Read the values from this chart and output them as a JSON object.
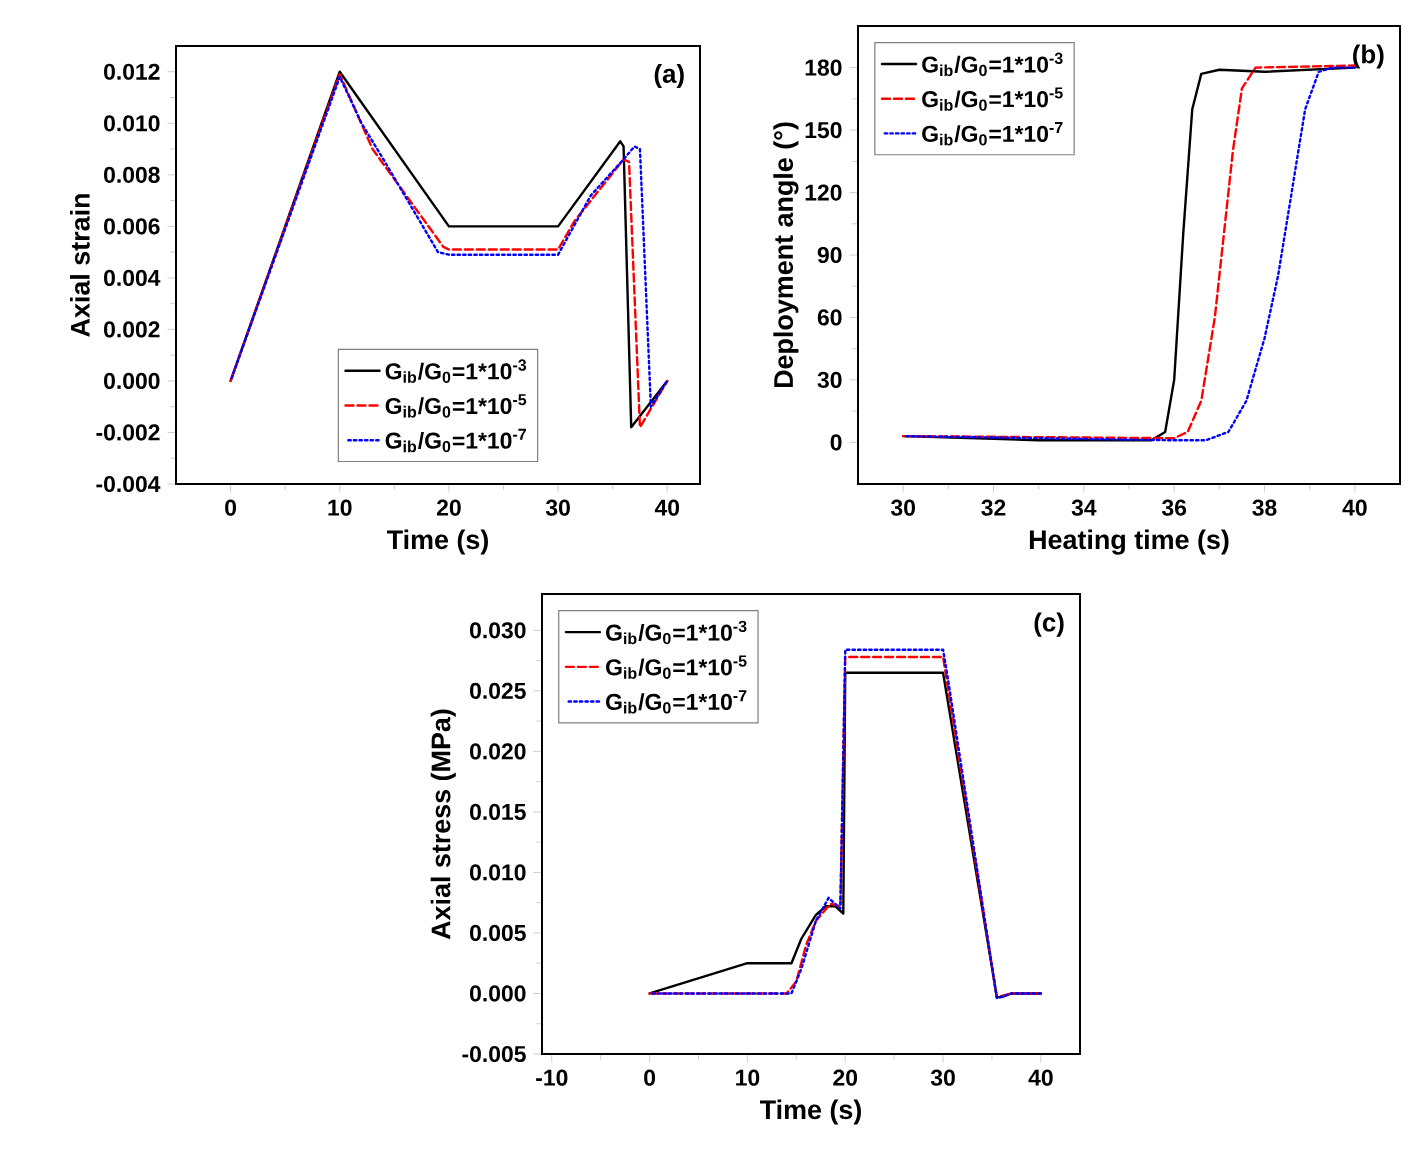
{
  "chart_data": [
    {
      "type": "line",
      "xlabel": "Time (s)",
      "ylabel": "Axial strain",
      "annotations": [
        "(a)"
      ],
      "legend": "bottom",
      "xlim": [
        -5,
        43
      ],
      "ylim": [
        -0.004,
        0.013
      ],
      "xticks": [
        0,
        10,
        20,
        30,
        40
      ],
      "yticks": [
        {
          "value": -0.004,
          "label": "-0.004"
        },
        {
          "value": -0.002,
          "label": "-0.002"
        },
        {
          "value": 0,
          "label": "0.000"
        },
        {
          "value": 0.002,
          "label": "0.002"
        },
        {
          "value": 0.004,
          "label": "0.004"
        },
        {
          "value": 0.006,
          "label": "0.006"
        },
        {
          "value": 0.008,
          "label": "0.008"
        },
        {
          "value": 0.01,
          "label": "0.010"
        },
        {
          "value": 0.012,
          "label": "0.012"
        }
      ],
      "series": [
        {
          "name": "G$_{ib}$/G$_{0}$=1*10$^{-3}$",
          "color": "#000000",
          "line_style": "solid",
          "x": [
            0,
            10,
            20,
            30,
            35.7,
            36,
            36.7,
            40
          ],
          "values": [
            0,
            0.012,
            0.006,
            0.006,
            0.0093,
            0.0091,
            -0.0018,
            0
          ]
        },
        {
          "name": "G$_{ib}$/G$_{0}$=1*10$^{-5}$",
          "color": "#ff0000",
          "line_style": "dashed",
          "x": [
            0,
            10,
            13,
            19.5,
            20,
            30,
            31.5,
            36,
            36.5,
            37.5,
            40
          ],
          "values": [
            0,
            0.0119,
            0.009,
            0.0052,
            0.0051,
            0.0051,
            0.0062,
            0.0086,
            0.0085,
            -0.0018,
            0
          ]
        },
        {
          "name": "G$_{ib}$/G$_{0}$=1*10$^{-7}$",
          "color": "#0000ff",
          "line_style": "dotted",
          "x": [
            0,
            10,
            12,
            14,
            19,
            20,
            30,
            33,
            36,
            37,
            37.5,
            38.5,
            40
          ],
          "values": [
            0,
            0.0118,
            0.01,
            0.0086,
            0.005,
            0.0049,
            0.0049,
            0.0072,
            0.0086,
            0.0091,
            0.009,
            -0.001,
            0
          ]
        }
      ]
    },
    {
      "type": "line",
      "xlabel": "Heating time (s)",
      "ylabel": "Deployment angle (°)",
      "annotations": [
        "(b)"
      ],
      "legend": "top left",
      "xlim": [
        29,
        41
      ],
      "ylim": [
        -20,
        200
      ],
      "xticks": [
        30,
        32,
        34,
        36,
        38,
        40
      ],
      "yticks": [
        0,
        30,
        60,
        90,
        120,
        150,
        180
      ],
      "series": [
        {
          "name": "G$_{ib}$/G$_{0}$=1*10$^{-3}$",
          "color": "#000000",
          "line_style": "solid",
          "x": [
            30,
            33,
            35.5,
            35.8,
            36,
            36.2,
            36.4,
            36.6,
            37,
            38,
            40
          ],
          "values": [
            3,
            1,
            1,
            5,
            30,
            100,
            160,
            177,
            179,
            178,
            180
          ]
        },
        {
          "name": "G$_{ib}$/G$_{0}$=1*10$^{-5}$",
          "color": "#ff0000",
          "line_style": "dashed",
          "x": [
            30,
            36,
            36.3,
            36.6,
            36.9,
            37.1,
            37.3,
            37.5,
            37.8,
            40
          ],
          "values": [
            3,
            2,
            5,
            20,
            60,
            100,
            140,
            170,
            180,
            181
          ]
        },
        {
          "name": "G$_{ib}$/G$_{0}$=1*10$^{-7}$",
          "color": "#0000ff",
          "line_style": "dotted",
          "x": [
            30,
            36,
            36.7,
            37.2,
            37.6,
            38,
            38.3,
            38.6,
            38.9,
            39.2,
            39.5,
            40
          ],
          "values": [
            3,
            1,
            1,
            5,
            20,
            50,
            80,
            120,
            160,
            178,
            180,
            180
          ]
        }
      ]
    },
    {
      "type": "line",
      "xlabel": "Time (s)",
      "ylabel": "Axial stress (MPa)",
      "annotations": [
        "(c)"
      ],
      "legend": "top left",
      "xlim": [
        -11,
        44
      ],
      "ylim": [
        -0.005,
        0.033
      ],
      "xticks": [
        -10,
        0,
        10,
        20,
        30,
        40
      ],
      "yticks": [
        {
          "value": -0.005,
          "label": "-0.005"
        },
        {
          "value": 0,
          "label": "0.000"
        },
        {
          "value": 0.005,
          "label": "0.005"
        },
        {
          "value": 0.01,
          "label": "0.010"
        },
        {
          "value": 0.015,
          "label": "0.015"
        },
        {
          "value": 0.02,
          "label": "0.020"
        },
        {
          "value": 0.025,
          "label": "0.025"
        },
        {
          "value": 0.03,
          "label": "0.030"
        }
      ],
      "series": [
        {
          "name": "G$_{ib}$/G$_{0}$=1*10$^{-3}$",
          "color": "#000000",
          "line_style": "solid",
          "x": [
            0,
            10,
            14.5,
            15.5,
            17,
            18,
            19,
            19.8,
            20,
            30,
            35.5,
            36,
            37,
            40
          ],
          "values": [
            0,
            0.0025,
            0.0025,
            0.0045,
            0.0065,
            0.0072,
            0.0072,
            0.0066,
            0.0265,
            0.0265,
            -0.0003,
            -0.0003,
            0,
            0
          ]
        },
        {
          "name": "G$_{ib}$/G$_{0}$=1*10$^{-5}$",
          "color": "#ff0000",
          "line_style": "dashed",
          "x": [
            0,
            14,
            15,
            16,
            17,
            18.5,
            19.5,
            20,
            30,
            35.5,
            37,
            40
          ],
          "values": [
            0,
            0,
            0.001,
            0.004,
            0.006,
            0.0074,
            0.0072,
            0.0278,
            0.0278,
            -0.0003,
            0,
            0
          ]
        },
        {
          "name": "G$_{ib}$/G$_{0}$=1*10$^{-7}$",
          "color": "#0000ff",
          "line_style": "dotted",
          "x": [
            0,
            14.5,
            15.5,
            17,
            18.3,
            19.5,
            20,
            30,
            30.5,
            35.5,
            37,
            40
          ],
          "values": [
            0,
            0,
            0.002,
            0.006,
            0.0079,
            0.007,
            0.0284,
            0.0284,
            0.026,
            -0.0004,
            0,
            0
          ]
        }
      ]
    }
  ]
}
